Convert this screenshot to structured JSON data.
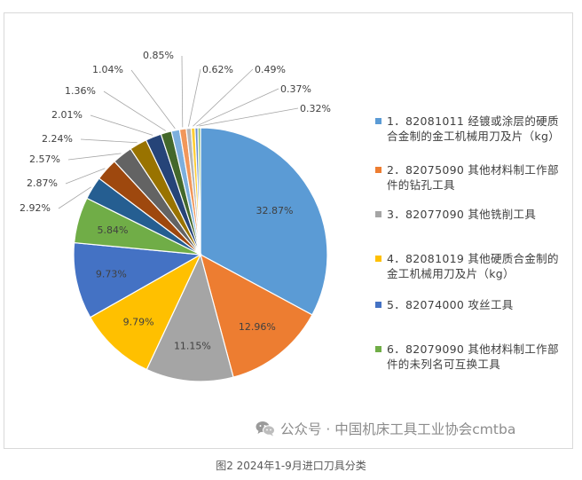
{
  "chart_data": {
    "type": "pie",
    "values": [
      32.87,
      12.96,
      11.15,
      9.79,
      9.73,
      5.84,
      2.92,
      2.87,
      2.57,
      2.24,
      2.01,
      1.36,
      1.04,
      0.85,
      0.62,
      0.49,
      0.37,
      0.32
    ],
    "labels": [
      "32.87%",
      "12.96%",
      "11.15%",
      "9.79%",
      "9.73%",
      "5.84%",
      "2.92%",
      "2.87%",
      "2.57%",
      "2.24%",
      "2.01%",
      "1.36%",
      "1.04%",
      "0.85%",
      "0.62%",
      "0.49%",
      "0.37%",
      "0.32%"
    ],
    "colors": [
      "#5b9bd5",
      "#ed7d31",
      "#a5a5a5",
      "#ffc000",
      "#4472c4",
      "#70ad47",
      "#255e91",
      "#9e480e",
      "#636363",
      "#997300",
      "#264478",
      "#43682b",
      "#7cafdd",
      "#f1975a",
      "#b7b7b7",
      "#ffcd33",
      "#698ed0",
      "#8cc168"
    ],
    "legend": [
      "1．82081011 经镀或涂层的硬质合金制的金工机械用刀及片（kg）",
      "2．82075090 其他材料制工作部件的钻孔工具",
      "3．82077090 其他铣削工具",
      "4．82081019 其他硬质合金制的金工机械用刀及片（kg）",
      "5．82074000 攻丝工具",
      "6．82079090 其他材料制工作部件的未列名可互换工具"
    ],
    "legend_placement": "right"
  },
  "watermark": "公众号 · 中国机床工具工业协会cmtba",
  "caption": "图2  2024年1-9月进口刀具分类",
  "icons": {
    "watermark": "wechat-icon"
  }
}
